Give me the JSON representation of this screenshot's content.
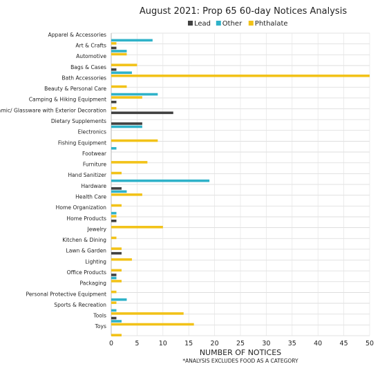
{
  "chart_data": {
    "type": "bar",
    "orientation": "horizontal",
    "title": "August 2021: Prop 65 60-day Notices Analysis",
    "xlabel": "NUMBER OF NOTICES",
    "footnote": "*ANALYSIS EXCLUDES FOOD AS A CATEGORY",
    "xlim": [
      0,
      50
    ],
    "xticks": [
      0,
      5,
      10,
      15,
      20,
      25,
      30,
      35,
      40,
      45,
      50
    ],
    "grid": true,
    "legend_position": "top",
    "categories": [
      "Apparel & Accessories",
      "Art & Crafts",
      "Automotive",
      "Bags & Cases",
      "Bath Accessories",
      "Beauty & Personal Care",
      "Camping & Hiking Equipment",
      "Ceramic/ Glassware with Exterior Decoration",
      "Dietary Supplements",
      "Electronics",
      "Fishing Equipment",
      "Footwear",
      "Furniture",
      "Hand Sanitizer",
      "Hardware",
      "Health Care",
      "Home Organization",
      "Home Products",
      "Jewelry",
      "Kitchen & Dining",
      "Lawn & Garden",
      "Lighting",
      "Office Products",
      "Packaging",
      "Personal Protective Equipment",
      "Sports & Recreation",
      "Tools",
      "Toys"
    ],
    "series": [
      {
        "name": "Lead",
        "color": "#404040",
        "values": [
          0,
          1,
          0,
          1,
          0,
          0,
          1,
          12,
          6,
          0,
          0,
          0,
          0,
          0,
          2,
          0,
          0,
          1,
          0,
          0,
          2,
          0,
          1,
          0,
          0,
          0,
          1,
          0
        ]
      },
      {
        "name": "Other",
        "color": "#2fb2c9",
        "values": [
          8,
          3,
          0,
          4,
          0,
          9,
          0,
          0,
          6,
          0,
          1,
          0,
          0,
          19,
          3,
          0,
          1,
          0,
          0,
          0,
          0,
          0,
          1,
          0,
          3,
          1,
          2,
          0
        ]
      },
      {
        "name": "Phthalate",
        "color": "#f2c218",
        "values": [
          1,
          3,
          5,
          50,
          3,
          6,
          1,
          0,
          0,
          9,
          0,
          7,
          2,
          0,
          6,
          2,
          1,
          10,
          1,
          2,
          4,
          2,
          2,
          1,
          1,
          14,
          16,
          2
        ]
      }
    ]
  }
}
